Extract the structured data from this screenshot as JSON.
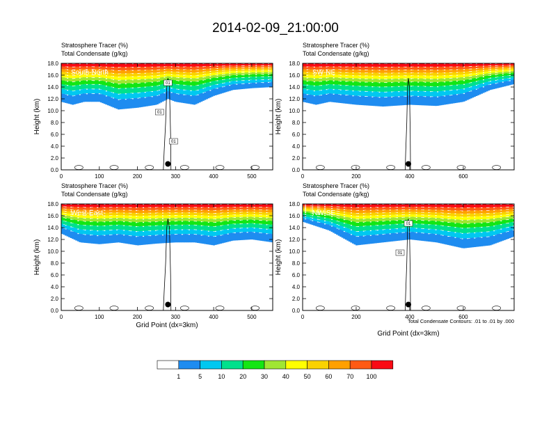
{
  "title": "2014-02-09_21:00:00",
  "colors": {
    "levels": [
      "#ffffff",
      "#1e8cf0",
      "#00c8f0",
      "#00e18c",
      "#14e614",
      "#a0e632",
      "#ffff00",
      "#fad200",
      "#ffa000",
      "#ff5a14",
      "#fa0a14"
    ],
    "contour": "#000000"
  },
  "colorbar": {
    "labels": [
      "1",
      "5",
      "10",
      "20",
      "30",
      "40",
      "50",
      "60",
      "70",
      "100"
    ]
  },
  "footnote": "Total Condensate Contours: .01 to .01 by .000",
  "chart_data": [
    {
      "type": "heatmap",
      "title": "Stratosphere Tracer   (%)",
      "subtitle": "Total Condensate   (g/kg)",
      "panel_label": "South-North",
      "ylabel": "Height (km)",
      "xlabel": "",
      "xlim": [
        0,
        555
      ],
      "ylim": [
        0,
        18
      ],
      "xticks": [
        "0",
        "100",
        "200",
        "300",
        "400",
        "500"
      ],
      "xtick_values": [
        0,
        100,
        200,
        300,
        400,
        500
      ],
      "yticks": [
        "0.0",
        "2.0",
        "4.0",
        "6.0",
        "8.0",
        "10.0",
        "12.0",
        "14.0",
        "16.0",
        "18.0"
      ],
      "contour_labels": [
        "01",
        "01",
        "01"
      ],
      "station_x": 280,
      "tracer_profile": {
        "x": [
          0,
          30,
          60,
          100,
          150,
          200,
          250,
          280,
          300,
          350,
          400,
          450,
          500,
          555
        ],
        "tracer_bottom_km": [
          11.5,
          11.0,
          11.5,
          11.5,
          10.2,
          10.5,
          11.0,
          12.0,
          11.5,
          11.0,
          12.5,
          13.5,
          13.8,
          14.0
        ],
        "low_band_km": [
          0,
          0,
          0,
          0,
          0,
          0,
          0,
          0,
          0,
          0,
          0,
          0,
          0,
          0
        ]
      }
    },
    {
      "type": "heatmap",
      "title": "Stratosphere Tracer   (%)",
      "subtitle": "Total Condensate   (g/kg)",
      "panel_label": "SW-NE",
      "ylabel": "Height (km)",
      "xlabel": "",
      "xlim": [
        0,
        790
      ],
      "ylim": [
        0,
        18
      ],
      "xticks": [
        "0",
        "200",
        "400",
        "600"
      ],
      "xtick_values": [
        0,
        200,
        400,
        600
      ],
      "yticks": [
        "0.0",
        "2.0",
        "4.0",
        "6.0",
        "8.0",
        "10.0",
        "12.0",
        "14.0",
        "16.0",
        "18.0"
      ],
      "contour_labels": [],
      "station_x": 395,
      "tracer_profile": {
        "x": [
          0,
          50,
          100,
          200,
          300,
          400,
          500,
          600,
          700,
          790
        ],
        "tracer_bottom_km": [
          11.5,
          11.0,
          11.5,
          11.0,
          10.7,
          11.0,
          10.8,
          11.5,
          13.5,
          14.5
        ],
        "low_band_km": [
          0,
          0,
          0,
          0,
          0,
          0,
          0,
          0,
          0,
          0
        ]
      }
    },
    {
      "type": "heatmap",
      "title": "Stratosphere Tracer   (%)",
      "subtitle": "Total Condensate   (g/kg)",
      "panel_label": "West-East",
      "ylabel": "Height (km)",
      "xlabel": "Grid Point (dx=3km)",
      "xlim": [
        0,
        555
      ],
      "ylim": [
        0,
        18
      ],
      "xticks": [
        "0",
        "100",
        "200",
        "300",
        "400",
        "500"
      ],
      "xtick_values": [
        0,
        100,
        200,
        300,
        400,
        500
      ],
      "yticks": [
        "0.0",
        "2.0",
        "4.0",
        "6.0",
        "8.0",
        "10.0",
        "12.0",
        "14.0",
        "16.0",
        "18.0"
      ],
      "contour_labels": [],
      "station_x": 280,
      "tracer_profile": {
        "x": [
          0,
          50,
          100,
          150,
          200,
          250,
          300,
          350,
          400,
          450,
          500,
          555
        ],
        "tracer_bottom_km": [
          13.0,
          11.5,
          11.2,
          11.5,
          11.0,
          11.3,
          11.5,
          11.5,
          11.0,
          11.8,
          12.0,
          11.5
        ],
        "low_band_km": [
          0,
          0,
          0,
          0,
          0,
          0,
          0,
          0,
          0,
          0,
          0,
          0
        ]
      }
    },
    {
      "type": "heatmap",
      "title": "Stratosphere Tracer   (%)",
      "subtitle": "Total Condensate   (g/kg)",
      "panel_label": "NW-SE",
      "ylabel": "Height (km)",
      "xlabel": "Grid Point (dx=3km)",
      "xlim": [
        0,
        790
      ],
      "ylim": [
        0,
        18
      ],
      "xticks": [
        "0",
        "200",
        "400",
        "600"
      ],
      "xtick_values": [
        0,
        200,
        400,
        600
      ],
      "yticks": [
        "0.0",
        "2.0",
        "4.0",
        "6.0",
        "8.0",
        "10.0",
        "12.0",
        "14.0",
        "16.0",
        "18.0"
      ],
      "contour_labels": [
        "01",
        "01"
      ],
      "station_x": 395,
      "tracer_profile": {
        "x": [
          0,
          100,
          200,
          300,
          400,
          500,
          600,
          700,
          790
        ],
        "tracer_bottom_km": [
          15.0,
          13.5,
          11.0,
          11.5,
          12.0,
          11.5,
          10.5,
          11.0,
          12.5
        ],
        "low_band_km": [
          0,
          0,
          0,
          0,
          0,
          0,
          0,
          0,
          0
        ]
      }
    }
  ]
}
